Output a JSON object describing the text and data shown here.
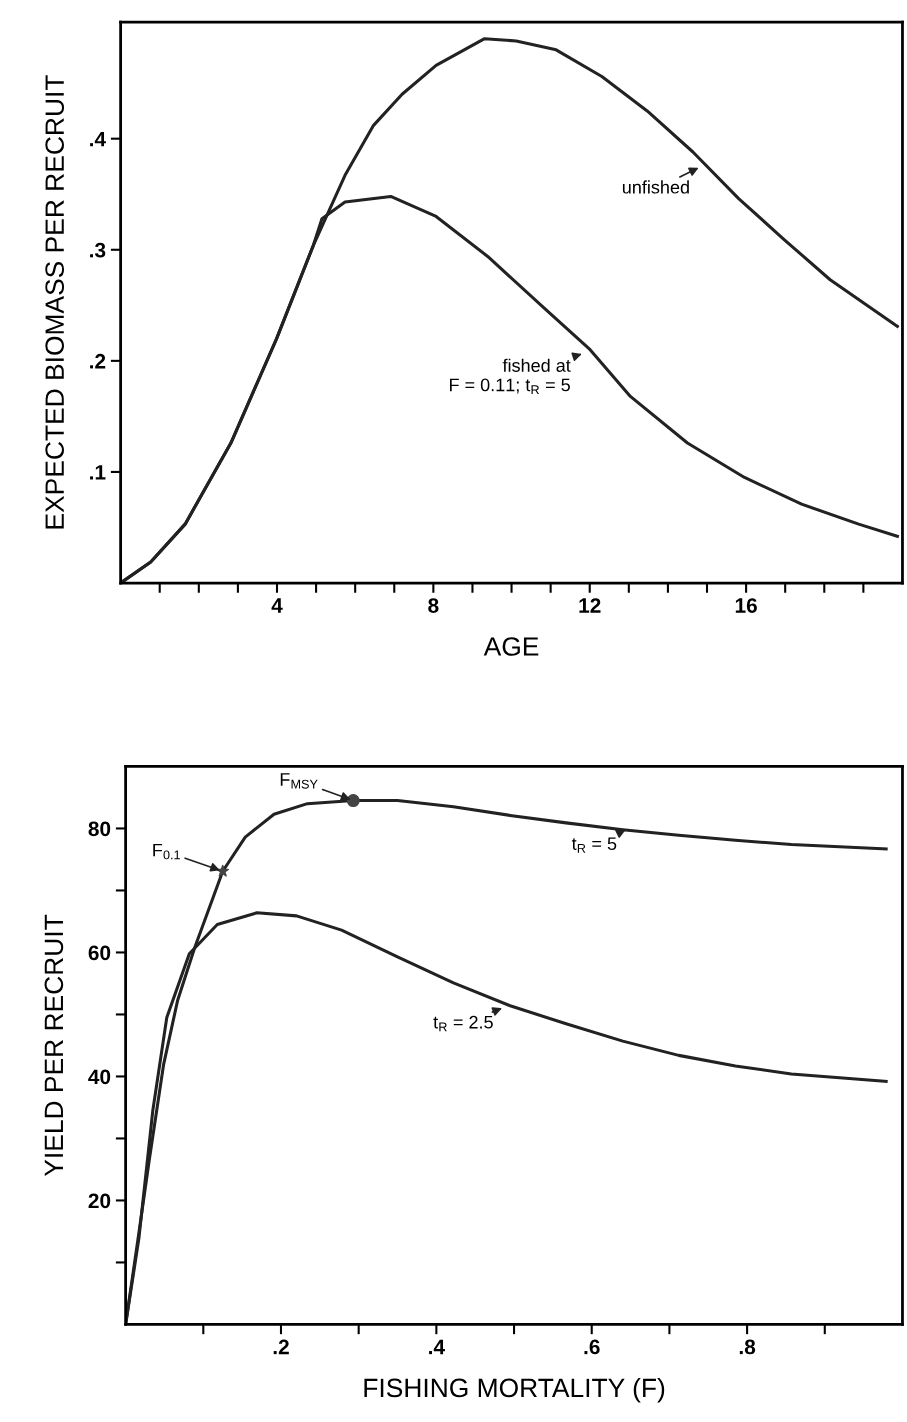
{
  "chart_data": [
    {
      "type": "line",
      "xlabel": "AGE",
      "ylabel": "EXPECTED BIOMASS PER RECRUIT",
      "xlim": [
        0,
        20
      ],
      "ylim": [
        0,
        0.505
      ],
      "xticks": [
        {
          "value": 1,
          "label": null
        },
        {
          "value": 2,
          "label": null
        },
        {
          "value": 3,
          "label": null
        },
        4,
        {
          "value": 5,
          "label": null
        },
        {
          "value": 6,
          "label": null
        },
        {
          "value": 7,
          "label": null
        },
        8,
        {
          "value": 9,
          "label": null
        },
        {
          "value": 10,
          "label": null
        },
        {
          "value": 11,
          "label": null
        },
        12,
        {
          "value": 13,
          "label": null
        },
        {
          "value": 14,
          "label": null
        },
        {
          "value": 15,
          "label": null
        },
        16,
        {
          "value": 17,
          "label": null
        },
        {
          "value": 18,
          "label": null
        },
        {
          "value": 19,
          "label": null
        }
      ],
      "yticks": [
        {
          "value": 0.1,
          "label": ".1"
        },
        {
          "value": 0.2,
          "label": ".2"
        },
        {
          "value": 0.3,
          "label": ".3"
        },
        {
          "value": 0.4,
          "label": ".4"
        }
      ],
      "grid": false,
      "legend": false,
      "marker": "none",
      "line_style": "solid",
      "series": [
        {
          "color": "#222222",
          "x": [
            0,
            0.77,
            1.65,
            2.82,
            3.99,
            4.93,
            5.74,
            6.47,
            7.2,
            8.07,
            9.31,
            10.12,
            11.14,
            12.31,
            13.47,
            14.64,
            15.81,
            16.98,
            18.15,
            19.87
          ],
          "values": [
            0,
            0.019,
            0.053,
            0.126,
            0.22,
            0.304,
            0.367,
            0.412,
            0.44,
            0.466,
            0.49,
            0.488,
            0.48,
            0.456,
            0.425,
            0.388,
            0.346,
            0.309,
            0.273,
            0.231
          ]
        },
        {
          "color": "#222222",
          "x": [
            0,
            0.77,
            1.65,
            2.82,
            3.99,
            4.93,
            5.15,
            5.74,
            6.91,
            8.07,
            9.39,
            10.85,
            12.01,
            13.04,
            14.5,
            15.96,
            17.42,
            18.88,
            19.87
          ],
          "values": [
            0,
            0.019,
            0.053,
            0.126,
            0.22,
            0.304,
            0.328,
            0.343,
            0.348,
            0.33,
            0.294,
            0.247,
            0.21,
            0.168,
            0.126,
            0.095,
            0.071,
            0.053,
            0.042
          ]
        }
      ],
      "annotations": [
        {
          "text": "unfished",
          "x": 14.85,
          "y": 0.375
        },
        {
          "text": "fished at\nF = 0.11; t$_{R}$ = 5",
          "x": 11.87,
          "y": 0.207
        }
      ]
    },
    {
      "type": "line",
      "xlabel": "FISHING MORTALITY (F)",
      "ylabel": "YIELD PER RECRUIT",
      "xlim": [
        0,
        1
      ],
      "ylim": [
        0,
        90
      ],
      "xticks": [
        {
          "value": 0.1,
          "label": null
        },
        {
          "value": 0.2,
          "label": ".2"
        },
        {
          "value": 0.3,
          "label": null
        },
        {
          "value": 0.4,
          "label": ".4"
        },
        {
          "value": 0.5,
          "label": null
        },
        {
          "value": 0.6,
          "label": ".6"
        },
        {
          "value": 0.7,
          "label": null
        },
        {
          "value": 0.8,
          "label": ".8"
        },
        {
          "value": 0.9,
          "label": null
        }
      ],
      "yticks": [
        {
          "value": 10,
          "label": null
        },
        20,
        {
          "value": 30,
          "label": null
        },
        40,
        {
          "value": 50,
          "label": null
        },
        60,
        {
          "value": 70,
          "label": null
        },
        80
      ],
      "grid": false,
      "legend": false,
      "marker": "none",
      "line_style": "solid",
      "series": [
        {
          "color": "#222222",
          "x": [
            0,
            0.017,
            0.031,
            0.049,
            0.067,
            0.089,
            0.125,
            0.154,
            0.191,
            0.234,
            0.293,
            0.35,
            0.422,
            0.495,
            0.567,
            0.64,
            0.712,
            0.785,
            0.857,
            0.979
          ],
          "values": [
            0,
            14.7,
            27,
            42,
            52.3,
            60.8,
            73.1,
            78.6,
            82.3,
            84,
            84.5,
            84.5,
            83.5,
            82.1,
            80.9,
            79.8,
            78.9,
            78.1,
            77.4,
            76.7
          ]
        },
        {
          "color": "#222222",
          "x": [
            0,
            0.017,
            0.035,
            0.053,
            0.082,
            0.118,
            0.169,
            0.22,
            0.278,
            0.35,
            0.422,
            0.495,
            0.567,
            0.64,
            0.712,
            0.785,
            0.857,
            0.979
          ],
          "values": [
            0,
            13.8,
            34.5,
            49.5,
            59.8,
            64.5,
            66.4,
            65.9,
            63.6,
            59.3,
            55.1,
            51.4,
            48.5,
            45.7,
            43.4,
            41.7,
            40.4,
            39.2
          ]
        },
        {
          "type": "scatter",
          "marker": "star",
          "color": "#444444",
          "x": [
            0.125
          ],
          "values": [
            73.1
          ]
        },
        {
          "type": "scatter",
          "marker": "circle",
          "color": "#444444",
          "x": [
            0.293
          ],
          "values": [
            84.5
          ]
        }
      ],
      "annotations": [
        {
          "text": "F$_{0.1}$",
          "x": 0.125,
          "y": 73.1
        },
        {
          "text": "F$_{MSY}$",
          "x": 0.293,
          "y": 84.5
        },
        {
          "text": "t$_{R}$ = 5",
          "x": 0.647,
          "y": 80
        },
        {
          "text": "t$_{R}$ = 2.5",
          "x": 0.488,
          "y": 51.2
        }
      ]
    }
  ]
}
